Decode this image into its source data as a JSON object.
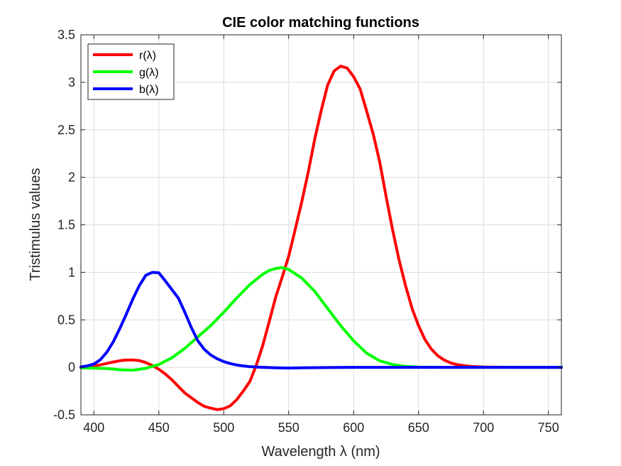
{
  "chart_data": {
    "type": "line",
    "title": "CIE color matching functions",
    "xlabel": "Wavelength λ (nm)",
    "ylabel": "Tristimulus values",
    "xlim": [
      390,
      760
    ],
    "ylim": [
      -0.5,
      3.5
    ],
    "xticks": [
      400,
      450,
      500,
      550,
      600,
      650,
      700,
      750
    ],
    "yticks": [
      -0.5,
      0,
      0.5,
      1,
      1.5,
      2,
      2.5,
      3,
      3.5
    ],
    "xtick_labels": [
      "400",
      "450",
      "500",
      "550",
      "600",
      "650",
      "700",
      "750"
    ],
    "ytick_labels": [
      "-0.5",
      "0",
      "0.5",
      "1",
      "1.5",
      "2",
      "2.5",
      "3",
      "3.5"
    ],
    "grid": true,
    "legend_position": "top-left",
    "series": [
      {
        "name": "r(λ)",
        "color": "#ff0000",
        "x": [
          390,
          395,
          400,
          405,
          410,
          415,
          420,
          425,
          430,
          435,
          440,
          445,
          450,
          455,
          460,
          465,
          470,
          475,
          480,
          485,
          490,
          495,
          500,
          505,
          510,
          515,
          520,
          525,
          530,
          535,
          540,
          545,
          550,
          555,
          560,
          565,
          570,
          575,
          580,
          585,
          590,
          595,
          600,
          605,
          610,
          615,
          620,
          625,
          630,
          635,
          640,
          645,
          650,
          655,
          660,
          665,
          670,
          675,
          680,
          685,
          690,
          695,
          700,
          710,
          720,
          730,
          740,
          750,
          760
        ],
        "y": [
          0.005,
          0.009,
          0.016,
          0.026,
          0.041,
          0.056,
          0.07,
          0.077,
          0.078,
          0.071,
          0.05,
          0.02,
          -0.02,
          -0.07,
          -0.13,
          -0.2,
          -0.27,
          -0.32,
          -0.37,
          -0.41,
          -0.43,
          -0.445,
          -0.435,
          -0.405,
          -0.34,
          -0.25,
          -0.15,
          0.02,
          0.23,
          0.48,
          0.74,
          0.95,
          1.17,
          1.45,
          1.74,
          2.05,
          2.4,
          2.7,
          2.97,
          3.12,
          3.17,
          3.15,
          3.06,
          2.93,
          2.7,
          2.46,
          2.17,
          1.8,
          1.45,
          1.13,
          0.86,
          0.62,
          0.44,
          0.29,
          0.19,
          0.12,
          0.075,
          0.045,
          0.028,
          0.018,
          0.011,
          0.007,
          0.004,
          0.002,
          0.001,
          0.0005,
          0.0002,
          0.0001,
          0.0
        ]
      },
      {
        "name": "g(λ)",
        "color": "#00ff00",
        "x": [
          390,
          400,
          410,
          420,
          430,
          440,
          450,
          460,
          470,
          480,
          490,
          500,
          510,
          520,
          530,
          535,
          540,
          545,
          550,
          560,
          570,
          580,
          590,
          600,
          610,
          620,
          630,
          640,
          650,
          660,
          670,
          680,
          690,
          700,
          720,
          740,
          760
        ],
        "y": [
          -0.005,
          -0.008,
          -0.012,
          -0.025,
          -0.03,
          -0.01,
          0.03,
          0.1,
          0.2,
          0.32,
          0.44,
          0.58,
          0.73,
          0.87,
          0.98,
          1.02,
          1.04,
          1.05,
          1.03,
          0.94,
          0.8,
          0.62,
          0.44,
          0.28,
          0.15,
          0.07,
          0.03,
          0.01,
          0.003,
          0.001,
          0.0,
          0.0,
          0.0,
          0.0,
          0.0,
          0.0,
          0.0
        ]
      },
      {
        "name": "b(λ)",
        "color": "#0000ff",
        "x": [
          390,
          395,
          400,
          405,
          410,
          415,
          420,
          425,
          430,
          435,
          440,
          445,
          450,
          455,
          460,
          465,
          470,
          475,
          480,
          485,
          490,
          495,
          500,
          505,
          510,
          515,
          520,
          530,
          540,
          550,
          560,
          580,
          600,
          620,
          640,
          660,
          680,
          700,
          720,
          740,
          760
        ],
        "y": [
          0.005,
          0.015,
          0.035,
          0.08,
          0.16,
          0.27,
          0.41,
          0.56,
          0.72,
          0.86,
          0.97,
          1.0,
          0.995,
          0.91,
          0.82,
          0.73,
          0.58,
          0.42,
          0.28,
          0.19,
          0.13,
          0.09,
          0.06,
          0.04,
          0.025,
          0.015,
          0.008,
          0.0,
          -0.005,
          -0.007,
          -0.005,
          -0.002,
          0.0,
          0.0,
          0.0,
          0.0,
          0.0,
          0.0,
          0.0,
          0.0,
          0.0
        ]
      }
    ]
  }
}
